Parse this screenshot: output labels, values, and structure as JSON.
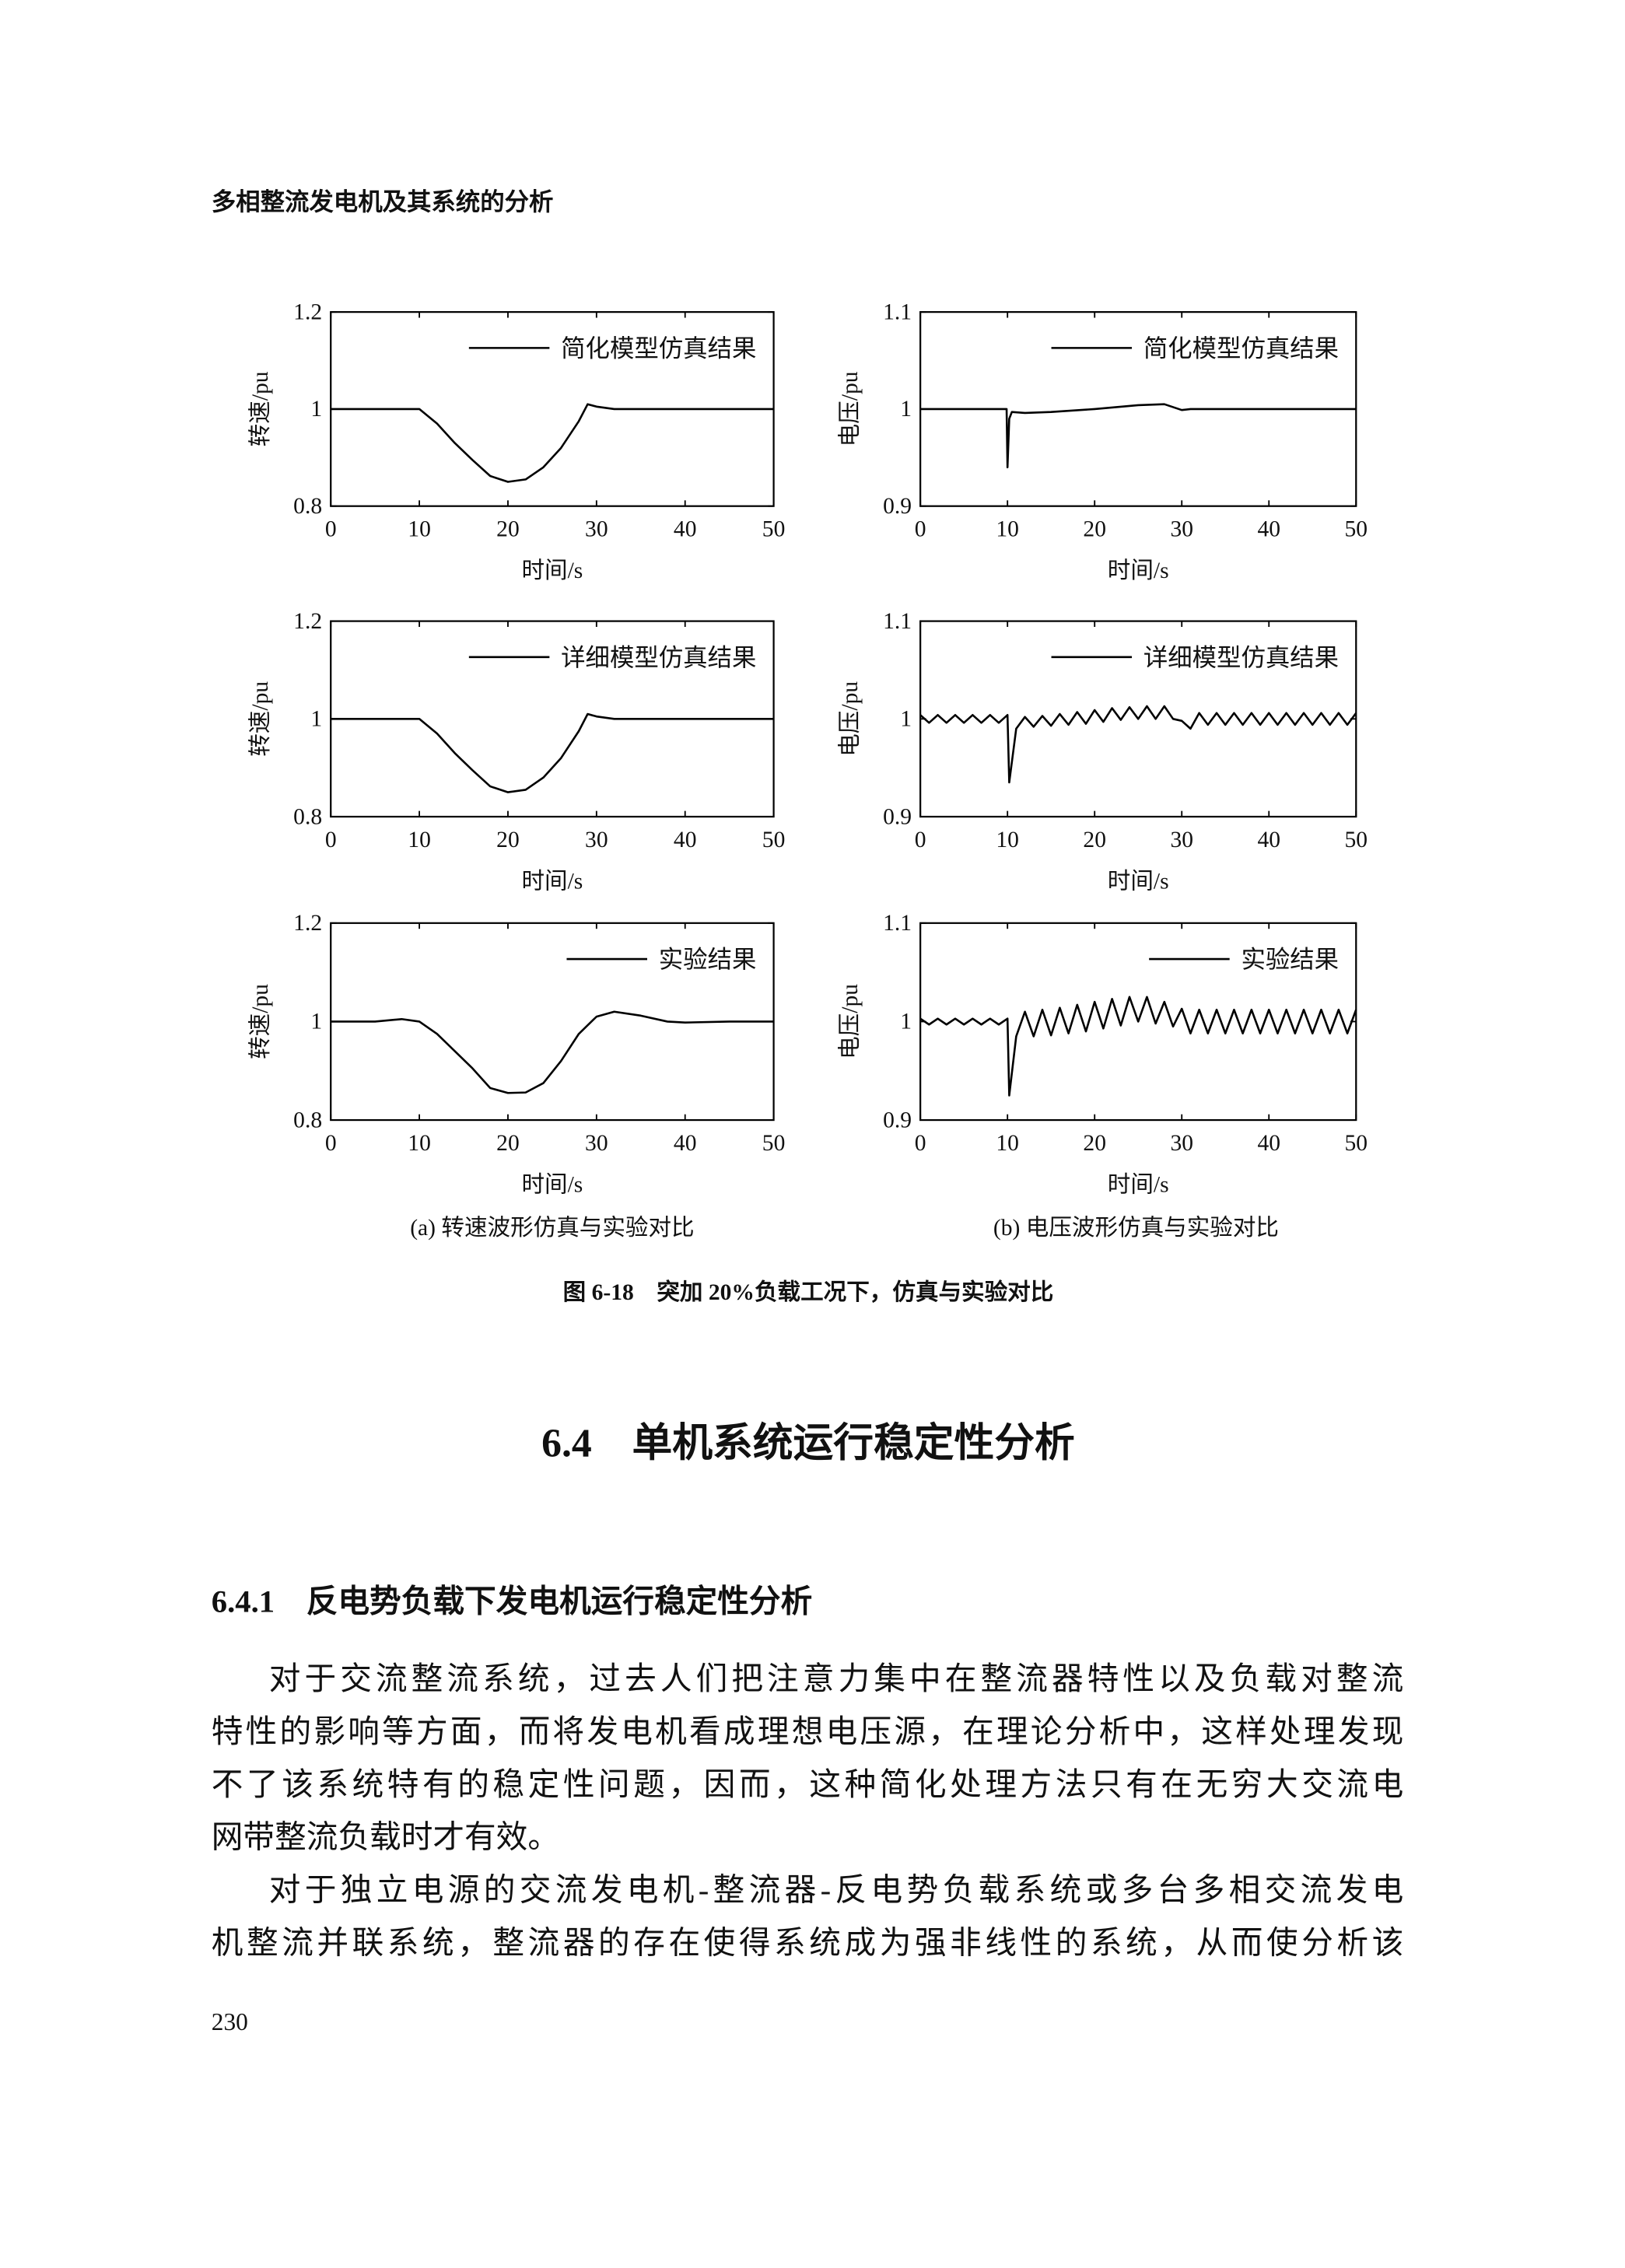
{
  "header": {
    "title": "多相整流发电机及其系统的分析"
  },
  "chart_data": [
    {
      "type": "line",
      "xlabel": "时间/s",
      "ylabel": "转速/pu",
      "xlim": [
        0,
        50
      ],
      "ylim": [
        0.8,
        1.2
      ],
      "xticks": [
        0,
        10,
        20,
        30,
        40,
        50
      ],
      "yticks": [
        0.8,
        1,
        1.2
      ],
      "x": [
        0,
        5,
        10,
        12,
        14,
        16,
        18,
        20,
        22,
        24,
        26,
        28,
        29,
        30,
        32,
        35,
        40,
        45,
        50
      ],
      "series": [
        {
          "name": "简化模型仿真结果",
          "color": "#000000",
          "values": [
            1,
            1,
            1,
            0.97,
            0.93,
            0.895,
            0.862,
            0.85,
            0.855,
            0.88,
            0.92,
            0.975,
            1.01,
            1.005,
            1,
            1,
            1,
            1,
            1
          ]
        }
      ]
    },
    {
      "type": "line",
      "xlabel": "时间/s",
      "ylabel": "电压/pu",
      "xlim": [
        0,
        50
      ],
      "ylim": [
        0.9,
        1.1
      ],
      "xticks": [
        0,
        10,
        20,
        30,
        40,
        50
      ],
      "yticks": [
        0.9,
        1,
        1.1
      ],
      "x": [
        0,
        9.9,
        10,
        10.2,
        10.5,
        12,
        15,
        20,
        25,
        28,
        30,
        31,
        35,
        40,
        50
      ],
      "series": [
        {
          "name": "简化模型仿真结果",
          "color": "#000000",
          "values": [
            1,
            1,
            0.94,
            0.99,
            0.997,
            0.996,
            0.997,
            1,
            1.004,
            1.005,
            0.999,
            1,
            1,
            1,
            1
          ]
        }
      ]
    },
    {
      "type": "line",
      "xlabel": "时间/s",
      "ylabel": "转速/pu",
      "xlim": [
        0,
        50
      ],
      "ylim": [
        0.8,
        1.2
      ],
      "xticks": [
        0,
        10,
        20,
        30,
        40,
        50
      ],
      "yticks": [
        0.8,
        1,
        1.2
      ],
      "x": [
        0,
        5,
        10,
        12,
        14,
        16,
        18,
        20,
        22,
        24,
        26,
        28,
        29,
        30,
        32,
        35,
        40,
        45,
        50
      ],
      "series": [
        {
          "name": "详细模型仿真结果",
          "color": "#000000",
          "values": [
            1,
            1,
            1,
            0.97,
            0.93,
            0.895,
            0.862,
            0.85,
            0.855,
            0.88,
            0.92,
            0.975,
            1.01,
            1.005,
            1,
            1,
            1,
            1,
            1
          ]
        }
      ]
    },
    {
      "type": "line",
      "xlabel": "时间/s",
      "ylabel": "电压/pu",
      "xlim": [
        0,
        50
      ],
      "ylim": [
        0.9,
        1.1
      ],
      "xticks": [
        0,
        10,
        20,
        30,
        40,
        50
      ],
      "yticks": [
        0.9,
        1,
        1.1
      ],
      "x": [
        0,
        1,
        2,
        3,
        4,
        5,
        6,
        7,
        8,
        9,
        10,
        10.2,
        11,
        12,
        13,
        14,
        15,
        16,
        17,
        18,
        19,
        20,
        21,
        22,
        23,
        24,
        25,
        26,
        27,
        28,
        29,
        30,
        31,
        32,
        33,
        34,
        35,
        36,
        37,
        38,
        39,
        40,
        41,
        42,
        43,
        44,
        45,
        46,
        47,
        48,
        49,
        50
      ],
      "series": [
        {
          "name": "详细模型仿真结果",
          "color": "#000000",
          "values": [
            1.004,
            0.996,
            1.004,
            0.996,
            1.004,
            0.996,
            1.004,
            0.996,
            1.004,
            0.996,
            1.004,
            0.935,
            0.99,
            1.002,
            0.992,
            1.003,
            0.993,
            1.005,
            0.994,
            1.007,
            0.995,
            1.009,
            0.997,
            1.011,
            0.999,
            1.012,
            1.0,
            1.013,
            1.0,
            1.013,
            1.0,
            0.998,
            0.99,
            1.006,
            0.994,
            1.006,
            0.994,
            1.006,
            0.994,
            1.006,
            0.994,
            1.006,
            0.994,
            1.006,
            0.994,
            1.006,
            0.994,
            1.006,
            0.994,
            1.006,
            0.994,
            1.006
          ]
        }
      ]
    },
    {
      "type": "line",
      "xlabel": "时间/s",
      "ylabel": "转速/pu",
      "xlim": [
        0,
        50
      ],
      "ylim": [
        0.8,
        1.2
      ],
      "xticks": [
        0,
        10,
        20,
        30,
        40,
        50
      ],
      "yticks": [
        0.8,
        1,
        1.2
      ],
      "x": [
        0,
        5,
        8,
        10,
        12,
        14,
        16,
        18,
        20,
        22,
        24,
        26,
        28,
        30,
        32,
        35,
        38,
        40,
        45,
        50
      ],
      "series": [
        {
          "name": "实验结果",
          "color": "#000000",
          "values": [
            1,
            1,
            1.005,
            1,
            0.975,
            0.94,
            0.905,
            0.865,
            0.855,
            0.856,
            0.875,
            0.92,
            0.975,
            1.01,
            1.02,
            1.012,
            1.0,
            0.998,
            1,
            1
          ]
        }
      ]
    },
    {
      "type": "line",
      "xlabel": "时间/s",
      "ylabel": "电压/pu",
      "xlim": [
        0,
        50
      ],
      "ylim": [
        0.9,
        1.1
      ],
      "xticks": [
        0,
        10,
        20,
        30,
        40,
        50
      ],
      "yticks": [
        0.9,
        1,
        1.1
      ],
      "x": [
        0,
        1,
        2,
        3,
        4,
        5,
        6,
        7,
        8,
        9,
        10,
        10.2,
        11,
        12,
        13,
        14,
        15,
        16,
        17,
        18,
        19,
        20,
        21,
        22,
        23,
        24,
        25,
        26,
        27,
        28,
        29,
        30,
        31,
        32,
        33,
        34,
        35,
        36,
        37,
        38,
        39,
        40,
        41,
        42,
        43,
        44,
        45,
        46,
        47,
        48,
        49,
        50
      ],
      "series": [
        {
          "name": "实验结果",
          "color": "#000000",
          "values": [
            1.003,
            0.997,
            1.003,
            0.997,
            1.003,
            0.997,
            1.003,
            0.997,
            1.003,
            0.997,
            1.003,
            0.925,
            0.985,
            1.01,
            0.985,
            1.012,
            0.986,
            1.014,
            0.988,
            1.017,
            0.99,
            1.02,
            0.993,
            1.023,
            0.996,
            1.025,
            1.0,
            1.025,
            0.998,
            1.02,
            0.995,
            1.013,
            0.988,
            1.012,
            0.988,
            1.012,
            0.988,
            1.012,
            0.988,
            1.012,
            0.988,
            1.012,
            0.988,
            1.012,
            0.988,
            1.012,
            0.988,
            1.012,
            0.988,
            1.012,
            0.988,
            1.012
          ]
        }
      ]
    }
  ],
  "captions": [
    "(a) 转速波形仿真与实验对比",
    "(b) 电压波形仿真与实验对比"
  ],
  "figure_caption": "图 6-18　突加 20%负载工况下，仿真与实验对比",
  "section": {
    "title": "6.4　单机系统运行稳定性分析"
  },
  "subsection": {
    "title": "6.4.1　反电势负载下发电机运行稳定性分析"
  },
  "paragraphs": [
    [
      "对于交流整流系统，过去人们把注意力集中在整流器特性以及负载对整流",
      "特性的影响等方面，而将发电机看成理想电压源，在理论分析中，这样处理发现",
      "不了该系统特有的稳定性问题，因而，这种简化处理方法只有在无穷大交流电",
      "网带整流负载时才有效。"
    ],
    [
      "对于独立电源的交流发电机-整流器-反电势负载系统或多台多相交流发电",
      "机整流并联系统，整流器的存在使得系统成为强非线性的系统，从而使分析该"
    ]
  ],
  "page_number": "230"
}
